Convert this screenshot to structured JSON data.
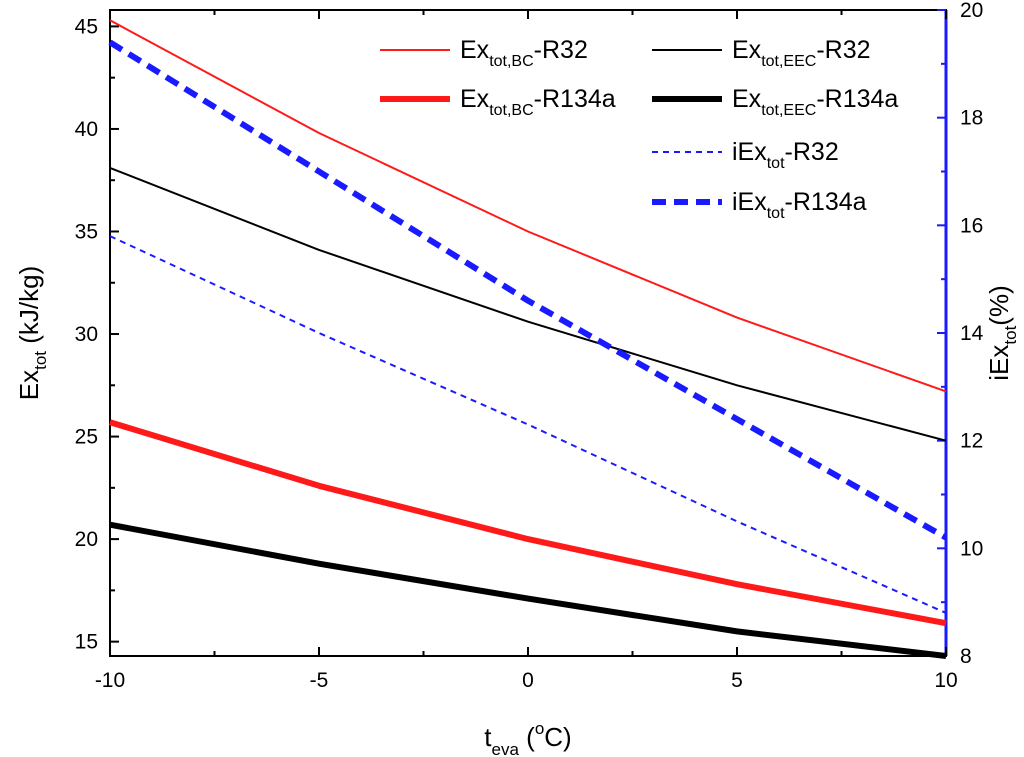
{
  "chart_data": {
    "type": "line",
    "x": [
      -10,
      -5,
      0,
      5,
      10
    ],
    "xlim": [
      -10,
      10
    ],
    "xticks": [
      "-10",
      "-5",
      "0",
      "5",
      "10"
    ],
    "xlabel": {
      "main": "t",
      "sub": "eva",
      "unit_open": " (",
      "sup": "o",
      "unit_close": "C)"
    },
    "ylim_left": [
      14.3,
      45.8
    ],
    "yticks_left": [
      "15",
      "20",
      "25",
      "30",
      "35",
      "40",
      "45"
    ],
    "ylabel_left": {
      "main": "Ex",
      "sub": "tot",
      "unit": " (kJ/kg)"
    },
    "ylim_right": [
      8,
      20
    ],
    "yticks_right": [
      "8",
      "10",
      "12",
      "14",
      "16",
      "18",
      "20"
    ],
    "ylabel_right": {
      "main": "iEx",
      "sub": "tot",
      "unit": "(%)"
    },
    "right_axis_color": "#1a1aff",
    "series": [
      {
        "name": "Ex_tot,BC-R32",
        "label_main": "Ex",
        "label_sub": "tot,BC",
        "label_suffix": "-R32",
        "axis": "left",
        "color": "#ff1a1a",
        "style": "solid",
        "weight": "thin",
        "values": [
          45.3,
          39.8,
          35.0,
          30.8,
          27.2
        ]
      },
      {
        "name": "Ex_tot,EEC-R32",
        "label_main": "Ex",
        "label_sub": "tot,EEC",
        "label_suffix": "-R32",
        "axis": "left",
        "color": "#000000",
        "style": "solid",
        "weight": "thin",
        "values": [
          38.1,
          34.1,
          30.6,
          27.5,
          24.8
        ]
      },
      {
        "name": "Ex_tot,BC-R134a",
        "label_main": "Ex",
        "label_sub": "tot,BC",
        "label_suffix": "-R134a",
        "axis": "left",
        "color": "#ff1a1a",
        "style": "solid",
        "weight": "thick",
        "values": [
          25.7,
          22.6,
          20.0,
          17.8,
          15.9
        ]
      },
      {
        "name": "Ex_tot,EEC-R134a",
        "label_main": "Ex",
        "label_sub": "tot,EEC",
        "label_suffix": "-R134a",
        "axis": "left",
        "color": "#000000",
        "style": "solid",
        "weight": "thick",
        "values": [
          20.7,
          18.8,
          17.1,
          15.5,
          14.3
        ]
      },
      {
        "name": "iEx_tot-R32",
        "label_main": "iEx",
        "label_sub": "tot",
        "label_suffix": "-R32",
        "axis": "right",
        "color": "#1a1aff",
        "style": "dashed",
        "weight": "thin",
        "values": [
          15.8,
          14.0,
          12.3,
          10.5,
          8.8
        ]
      },
      {
        "name": "iEx_tot-R134a",
        "label_main": "iEx",
        "label_sub": "tot",
        "label_suffix": "-R134a",
        "axis": "right",
        "color": "#1a1aff",
        "style": "dashed",
        "weight": "thick",
        "values": [
          19.4,
          17.0,
          14.6,
          12.4,
          10.2
        ]
      }
    ],
    "legend_position": "top-right"
  }
}
